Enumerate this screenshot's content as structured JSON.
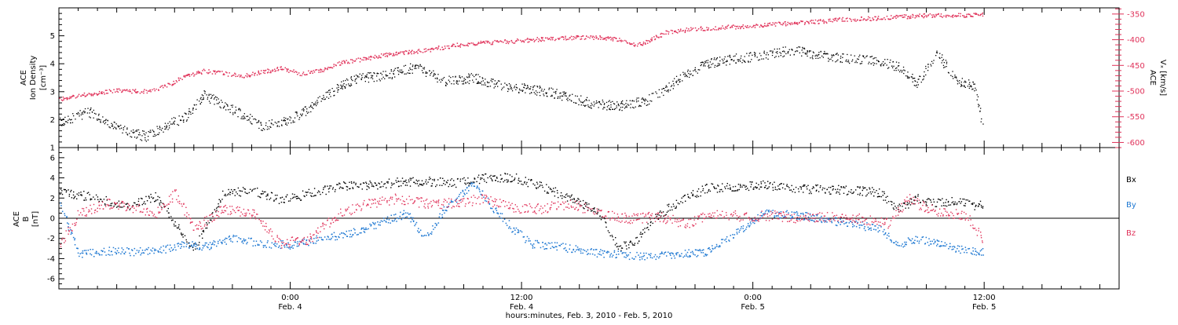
{
  "x_axis": {
    "ticks": [
      {
        "time": "2010-02-04T00:00",
        "clock": "0:00",
        "date": "Feb. 4"
      },
      {
        "time": "2010-02-04T12:00",
        "clock": "12:00",
        "date": "Feb. 4"
      },
      {
        "time": "2010-02-05T00:00",
        "clock": "0:00",
        "date": "Feb. 5"
      },
      {
        "time": "2010-02-05T12:00",
        "clock": "12:00",
        "date": "Feb. 5"
      }
    ],
    "range": [
      "2010-02-03T12:00",
      "2010-02-05T19:00"
    ],
    "xlabel": "hours:minutes, Feb.  3, 2010 - Feb.  5, 2010"
  },
  "colors": {
    "axis": "#000000",
    "velocity": "#e0325a",
    "by": "#1e78d2",
    "bz": "#e0325a",
    "bx": "#000000"
  },
  "chart_data": [
    {
      "type": "scatter",
      "ylabel_lines": [
        "ACE",
        "Ion Density",
        "[cm⁻³]"
      ],
      "ylim": [
        1,
        6
      ],
      "yticks": [
        1,
        2,
        3,
        4,
        5
      ],
      "y2label_lines": [
        "ACE",
        "Vₓ [km/s]"
      ],
      "y2lim": [
        -610,
        -338
      ],
      "y2ticks": [
        -600,
        -550,
        -500,
        -450,
        -400,
        -350
      ],
      "series": [
        {
          "key": "density",
          "axis": "left",
          "color": "#000000",
          "x": [
            "2010-02-03T12:00",
            "2010-02-03T13:30",
            "2010-02-03T15:00",
            "2010-02-03T16:30",
            "2010-02-03T17:30",
            "2010-02-03T18:30",
            "2010-02-03T19:30",
            "2010-02-03T20:30",
            "2010-02-03T21:30",
            "2010-02-03T22:30",
            "2010-02-03T23:30",
            "2010-02-04T00:30",
            "2010-02-04T01:30",
            "2010-02-04T02:30",
            "2010-02-04T03:30",
            "2010-02-04T05:00",
            "2010-02-04T06:30",
            "2010-02-04T08:00",
            "2010-02-04T09:30",
            "2010-02-04T11:00",
            "2010-02-04T12:30",
            "2010-02-04T14:00",
            "2010-02-04T15:30",
            "2010-02-04T17:00",
            "2010-02-04T18:30",
            "2010-02-04T19:30",
            "2010-02-04T20:00",
            "2010-02-04T21:30",
            "2010-02-04T23:00",
            "2010-02-05T00:30",
            "2010-02-05T02:00",
            "2010-02-05T03:30",
            "2010-02-05T05:00",
            "2010-02-05T06:30",
            "2010-02-05T07:30",
            "2010-02-05T08:30",
            "2010-02-05T09:30",
            "2010-02-05T10:30",
            "2010-02-05T11:30",
            "2010-02-05T11:55"
          ],
          "values": [
            1.9,
            2.3,
            1.7,
            1.4,
            1.8,
            2.1,
            2.9,
            2.5,
            2.2,
            1.8,
            1.9,
            2.2,
            2.7,
            3.2,
            3.5,
            3.6,
            3.9,
            3.4,
            3.5,
            3.2,
            3.1,
            2.9,
            2.6,
            2.5,
            2.7,
            3.1,
            3.4,
            4.0,
            4.2,
            4.3,
            4.5,
            4.3,
            4.2,
            4.1,
            3.9,
            3.3,
            4.4,
            3.4,
            3.2,
            1.5
          ]
        },
        {
          "key": "velocity",
          "axis": "right",
          "color": "#e0325a",
          "x": [
            "2010-02-03T12:00",
            "2010-02-03T13:30",
            "2010-02-03T15:00",
            "2010-02-03T16:30",
            "2010-02-03T17:30",
            "2010-02-03T18:30",
            "2010-02-03T19:30",
            "2010-02-03T20:30",
            "2010-02-03T21:30",
            "2010-02-03T22:30",
            "2010-02-03T23:30",
            "2010-02-04T00:30",
            "2010-02-04T01:30",
            "2010-02-04T02:30",
            "2010-02-04T04:00",
            "2010-02-04T05:30",
            "2010-02-04T07:00",
            "2010-02-04T08:30",
            "2010-02-04T10:00",
            "2010-02-04T11:30",
            "2010-02-04T13:00",
            "2010-02-04T14:30",
            "2010-02-04T16:00",
            "2010-02-04T17:00",
            "2010-02-04T18:00",
            "2010-02-04T19:30",
            "2010-02-04T21:00",
            "2010-02-04T22:30",
            "2010-02-05T00:00",
            "2010-02-05T01:30",
            "2010-02-05T03:00",
            "2010-02-05T04:30",
            "2010-02-05T06:00",
            "2010-02-05T07:30",
            "2010-02-05T09:00",
            "2010-02-05T10:30",
            "2010-02-05T11:55"
          ],
          "values": [
            -515,
            -505,
            -498,
            -500,
            -490,
            -470,
            -460,
            -465,
            -470,
            -462,
            -455,
            -465,
            -460,
            -445,
            -435,
            -425,
            -420,
            -410,
            -405,
            -402,
            -398,
            -395,
            -395,
            -398,
            -410,
            -385,
            -378,
            -375,
            -372,
            -368,
            -365,
            -360,
            -358,
            -355,
            -352,
            -352,
            -350
          ]
        }
      ]
    },
    {
      "type": "scatter",
      "ylabel_lines": [
        "ACE",
        "B",
        "[nT]"
      ],
      "ylim": [
        -7,
        7
      ],
      "yticks": [
        -6,
        -4,
        -2,
        0,
        2,
        4,
        6
      ],
      "legend": [
        "Bx",
        "By",
        "Bz"
      ],
      "series": [
        {
          "name": "Bx",
          "color": "#000000",
          "x": [
            "2010-02-03T12:00",
            "2010-02-03T14:00",
            "2010-02-03T15:30",
            "2010-02-03T17:00",
            "2010-02-03T18:00",
            "2010-02-03T19:00",
            "2010-02-03T20:30",
            "2010-02-03T22:00",
            "2010-02-03T23:30",
            "2010-02-04T01:00",
            "2010-02-04T02:30",
            "2010-02-04T04:00",
            "2010-02-04T05:30",
            "2010-02-04T07:00",
            "2010-02-04T08:30",
            "2010-02-04T10:00",
            "2010-02-04T11:30",
            "2010-02-04T13:00",
            "2010-02-04T14:30",
            "2010-02-04T16:00",
            "2010-02-04T17:00",
            "2010-02-04T18:00",
            "2010-02-04T19:00",
            "2010-02-04T20:00",
            "2010-02-04T21:30",
            "2010-02-04T23:00",
            "2010-02-05T00:30",
            "2010-02-05T02:00",
            "2010-02-05T03:30",
            "2010-02-05T05:00",
            "2010-02-05T06:30",
            "2010-02-05T07:30",
            "2010-02-05T08:30",
            "2010-02-05T09:30",
            "2010-02-05T10:30",
            "2010-02-05T11:30",
            "2010-02-05T11:55"
          ],
          "values": [
            2.7,
            2.0,
            1.2,
            2.2,
            -0.5,
            -3.0,
            2.5,
            2.8,
            1.8,
            2.5,
            3.2,
            3.3,
            3.6,
            3.7,
            3.5,
            4.0,
            4.1,
            3.2,
            2.0,
            0.5,
            -3.0,
            -2.0,
            0.3,
            1.5,
            3.0,
            3.2,
            3.3,
            3.0,
            2.9,
            2.8,
            2.6,
            1.0,
            2.0,
            1.5,
            1.8,
            1.2,
            1.5
          ]
        },
        {
          "name": "By",
          "color": "#1e78d2",
          "x": [
            "2010-02-03T12:00",
            "2010-02-03T13:00",
            "2010-02-03T14:30",
            "2010-02-03T16:00",
            "2010-02-03T17:30",
            "2010-02-03T18:30",
            "2010-02-03T19:30",
            "2010-02-03T21:00",
            "2010-02-03T22:30",
            "2010-02-04T00:00",
            "2010-02-04T01:30",
            "2010-02-04T03:00",
            "2010-02-04T04:30",
            "2010-02-04T06:00",
            "2010-02-04T07:00",
            "2010-02-04T08:00",
            "2010-02-04T09:30",
            "2010-02-04T10:30",
            "2010-02-04T11:30",
            "2010-02-04T12:30",
            "2010-02-04T14:00",
            "2010-02-04T15:30",
            "2010-02-04T17:00",
            "2010-02-04T18:30",
            "2010-02-04T20:00",
            "2010-02-04T21:30",
            "2010-02-04T23:00",
            "2010-02-05T00:30",
            "2010-02-05T02:00",
            "2010-02-05T03:30",
            "2010-02-05T05:00",
            "2010-02-05T06:30",
            "2010-02-05T07:30",
            "2010-02-05T08:30",
            "2010-02-05T09:30",
            "2010-02-05T10:30",
            "2010-02-05T11:55"
          ],
          "values": [
            1.5,
            -3.5,
            -3.2,
            -3.3,
            -3.0,
            -2.5,
            -2.8,
            -2.0,
            -2.5,
            -2.6,
            -2.0,
            -1.5,
            -0.5,
            0.5,
            -2.0,
            1.0,
            3.5,
            1.0,
            -1.0,
            -2.5,
            -2.8,
            -3.3,
            -3.6,
            -3.8,
            -3.5,
            -3.3,
            -1.5,
            0.5,
            0.4,
            0.0,
            -0.5,
            -1.0,
            -2.5,
            -2.0,
            -2.5,
            -3.0,
            -3.3
          ]
        },
        {
          "name": "Bz",
          "color": "#e0325a",
          "x": [
            "2010-02-03T12:00",
            "2010-02-03T13:00",
            "2010-02-03T14:30",
            "2010-02-03T16:00",
            "2010-02-03T17:00",
            "2010-02-03T18:00",
            "2010-02-03T19:00",
            "2010-02-03T20:30",
            "2010-02-03T22:00",
            "2010-02-03T23:30",
            "2010-02-04T01:00",
            "2010-02-04T02:30",
            "2010-02-04T04:00",
            "2010-02-04T05:30",
            "2010-02-04T07:00",
            "2010-02-04T08:30",
            "2010-02-04T10:00",
            "2010-02-04T11:30",
            "2010-02-04T13:00",
            "2010-02-04T14:30",
            "2010-02-04T16:00",
            "2010-02-04T17:30",
            "2010-02-04T19:00",
            "2010-02-04T20:30",
            "2010-02-04T22:00",
            "2010-02-04T23:30",
            "2010-02-05T01:00",
            "2010-02-05T02:30",
            "2010-02-05T04:00",
            "2010-02-05T05:30",
            "2010-02-05T07:00",
            "2010-02-05T08:00",
            "2010-02-05T09:00",
            "2010-02-05T10:00",
            "2010-02-05T11:00",
            "2010-02-05T11:55"
          ],
          "values": [
            -2.5,
            0.5,
            1.5,
            1.0,
            0.5,
            2.5,
            -1.0,
            1.0,
            0.5,
            -2.5,
            -2.0,
            0.5,
            1.5,
            2.0,
            1.5,
            1.5,
            2.0,
            1.0,
            1.0,
            1.5,
            0.5,
            0.0,
            0.2,
            -0.5,
            0.5,
            0.2,
            0.3,
            0.0,
            0.2,
            0.0,
            -0.5,
            2.0,
            1.0,
            0.5,
            0.3,
            -2.0
          ]
        }
      ]
    }
  ]
}
